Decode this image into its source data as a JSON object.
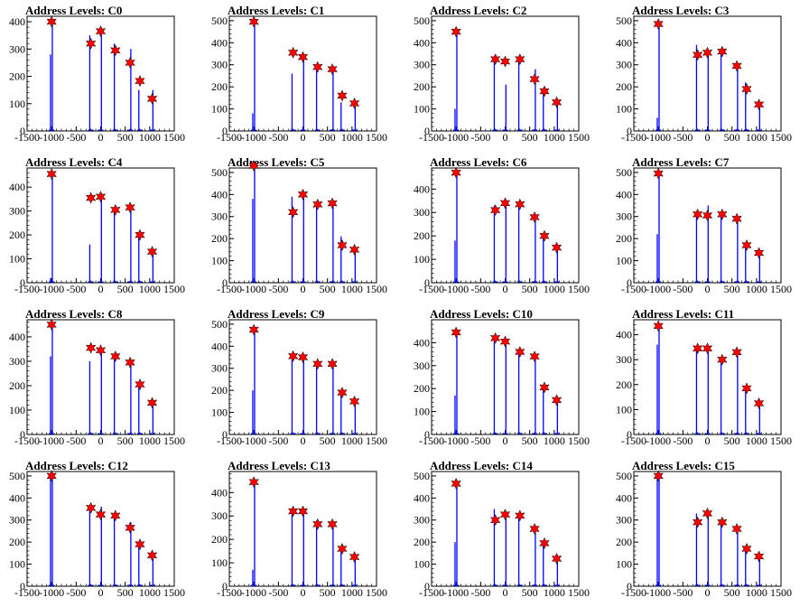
{
  "colors": {
    "bar": "#0000ff",
    "marker": "#ff0000",
    "axis": "#000000"
  },
  "marker_shape": "star",
  "chart_data": [
    {
      "type": "bar",
      "title": "Address Levels: C0",
      "xlim": [
        -1500,
        1500
      ],
      "ylim": [
        0,
        420
      ],
      "yticks": [
        0,
        100,
        200,
        300,
        400
      ],
      "x_ticks": [
        "-1500",
        "-1000",
        "-500",
        "0",
        "500",
        "1000",
        "1500"
      ],
      "bars": [
        [
          -1000,
          280
        ],
        [
          -1000,
          410
        ],
        [
          -200,
          350
        ],
        [
          0,
          350
        ],
        [
          300,
          320
        ],
        [
          600,
          300
        ],
        [
          800,
          150
        ],
        [
          1050,
          150
        ]
      ],
      "markers": [
        [
          -1000,
          400
        ],
        [
          -200,
          320
        ],
        [
          0,
          365
        ],
        [
          300,
          295
        ],
        [
          600,
          250
        ],
        [
          800,
          183
        ],
        [
          1050,
          118
        ]
      ]
    },
    {
      "type": "bar",
      "title": "Address Levels: C1",
      "xlim": [
        -1500,
        1500
      ],
      "ylim": [
        0,
        520
      ],
      "yticks": [
        0,
        100,
        200,
        300,
        400,
        500
      ],
      "x_ticks": [
        "-1500",
        "-1000",
        "-500",
        "0",
        "500",
        "1000",
        "1500"
      ],
      "bars": [
        [
          -1000,
          80
        ],
        [
          -1000,
          500
        ],
        [
          -200,
          260
        ],
        [
          0,
          330
        ],
        [
          300,
          290
        ],
        [
          600,
          290
        ],
        [
          800,
          130
        ],
        [
          1050,
          130
        ]
      ],
      "markers": [
        [
          -1000,
          495
        ],
        [
          -200,
          355
        ],
        [
          0,
          335
        ],
        [
          300,
          290
        ],
        [
          600,
          280
        ],
        [
          800,
          160
        ],
        [
          1050,
          125
        ]
      ]
    },
    {
      "type": "bar",
      "title": "Address Levels: C2",
      "xlim": [
        -1500,
        1500
      ],
      "ylim": [
        0,
        520
      ],
      "yticks": [
        0,
        100,
        200,
        300,
        400,
        500
      ],
      "x_ticks": [
        "-1500",
        "-1000",
        "-500",
        "0",
        "500",
        "1000",
        "1500"
      ],
      "bars": [
        [
          -1000,
          100
        ],
        [
          -1000,
          460
        ],
        [
          -200,
          320
        ],
        [
          0,
          210
        ],
        [
          300,
          330
        ],
        [
          600,
          280
        ],
        [
          800,
          180
        ],
        [
          1050,
          130
        ]
      ],
      "markers": [
        [
          -1000,
          450
        ],
        [
          -200,
          325
        ],
        [
          0,
          315
        ],
        [
          300,
          325
        ],
        [
          600,
          235
        ],
        [
          800,
          180
        ],
        [
          1050,
          130
        ]
      ]
    },
    {
      "type": "bar",
      "title": "Address Levels: C3",
      "xlim": [
        -1500,
        1500
      ],
      "ylim": [
        0,
        520
      ],
      "yticks": [
        0,
        100,
        200,
        300,
        400,
        500
      ],
      "x_ticks": [
        "-1500",
        "-1000",
        "-500",
        "0",
        "500",
        "1000",
        "1500"
      ],
      "bars": [
        [
          -1000,
          60
        ],
        [
          -1000,
          490
        ],
        [
          -200,
          390
        ],
        [
          0,
          350
        ],
        [
          300,
          360
        ],
        [
          600,
          300
        ],
        [
          800,
          220
        ],
        [
          1050,
          130
        ]
      ],
      "markers": [
        [
          -1000,
          485
        ],
        [
          -200,
          345
        ],
        [
          0,
          355
        ],
        [
          300,
          360
        ],
        [
          600,
          295
        ],
        [
          800,
          190
        ],
        [
          1050,
          120
        ]
      ]
    },
    {
      "type": "bar",
      "title": "Address Levels: C4",
      "xlim": [
        -1500,
        1500
      ],
      "ylim": [
        0,
        480
      ],
      "yticks": [
        0,
        100,
        200,
        300,
        400
      ],
      "x_ticks": [
        "-1500",
        "-1000",
        "-500",
        "0",
        "500",
        "1000",
        "1500"
      ],
      "bars": [
        [
          -1000,
          20
        ],
        [
          -1000,
          460
        ],
        [
          -200,
          160
        ],
        [
          0,
          370
        ],
        [
          300,
          310
        ],
        [
          600,
          320
        ],
        [
          800,
          200
        ],
        [
          1050,
          130
        ]
      ],
      "markers": [
        [
          -1000,
          455
        ],
        [
          -200,
          355
        ],
        [
          0,
          360
        ],
        [
          300,
          305
        ],
        [
          600,
          315
        ],
        [
          800,
          200
        ],
        [
          1050,
          130
        ]
      ]
    },
    {
      "type": "bar",
      "title": "Address Levels: C5",
      "xlim": [
        -1500,
        1500
      ],
      "ylim": [
        0,
        520
      ],
      "yticks": [
        0,
        100,
        200,
        300,
        400,
        500
      ],
      "x_ticks": [
        "-1500",
        "-1000",
        "-500",
        "0",
        "500",
        "1000",
        "1500"
      ],
      "bars": [
        [
          -1000,
          380
        ],
        [
          -1000,
          530
        ],
        [
          -200,
          390
        ],
        [
          0,
          400
        ],
        [
          300,
          360
        ],
        [
          600,
          360
        ],
        [
          800,
          210
        ],
        [
          1050,
          160
        ]
      ],
      "markers": [
        [
          -1000,
          530
        ],
        [
          -200,
          320
        ],
        [
          0,
          400
        ],
        [
          300,
          355
        ],
        [
          600,
          360
        ],
        [
          800,
          170
        ],
        [
          1050,
          150
        ]
      ]
    },
    {
      "type": "bar",
      "title": "Address Levels: C6",
      "xlim": [
        -1500,
        1500
      ],
      "ylim": [
        0,
        490
      ],
      "yticks": [
        0,
        100,
        200,
        300,
        400
      ],
      "x_ticks": [
        "-1500",
        "-1000",
        "-500",
        "0",
        "500",
        "1000",
        "1500"
      ],
      "bars": [
        [
          -1000,
          180
        ],
        [
          -1000,
          470
        ],
        [
          -200,
          330
        ],
        [
          0,
          340
        ],
        [
          300,
          340
        ],
        [
          600,
          290
        ],
        [
          800,
          200
        ],
        [
          1050,
          150
        ]
      ],
      "markers": [
        [
          -1000,
          470
        ],
        [
          -200,
          310
        ],
        [
          0,
          340
        ],
        [
          300,
          335
        ],
        [
          600,
          280
        ],
        [
          800,
          200
        ],
        [
          1050,
          150
        ]
      ]
    },
    {
      "type": "bar",
      "title": "Address Levels: C7",
      "xlim": [
        -1500,
        1500
      ],
      "ylim": [
        0,
        520
      ],
      "yticks": [
        0,
        100,
        200,
        300,
        400,
        500
      ],
      "x_ticks": [
        "-1500",
        "-1000",
        "-500",
        "0",
        "500",
        "1000",
        "1500"
      ],
      "bars": [
        [
          -1000,
          220
        ],
        [
          -1000,
          500
        ],
        [
          -200,
          320
        ],
        [
          0,
          350
        ],
        [
          300,
          320
        ],
        [
          600,
          300
        ],
        [
          800,
          170
        ],
        [
          1050,
          140
        ]
      ],
      "markers": [
        [
          -1000,
          495
        ],
        [
          -200,
          310
        ],
        [
          0,
          305
        ],
        [
          300,
          310
        ],
        [
          600,
          290
        ],
        [
          800,
          170
        ],
        [
          1050,
          135
        ]
      ]
    },
    {
      "type": "bar",
      "title": "Address Levels: C8",
      "xlim": [
        -1500,
        1500
      ],
      "ylim": [
        0,
        470
      ],
      "yticks": [
        0,
        100,
        200,
        300,
        400
      ],
      "x_ticks": [
        "-1500",
        "-1000",
        "-500",
        "0",
        "500",
        "1000",
        "1500"
      ],
      "bars": [
        [
          -1000,
          320
        ],
        [
          -1000,
          450
        ],
        [
          -200,
          300
        ],
        [
          0,
          350
        ],
        [
          300,
          320
        ],
        [
          600,
          300
        ],
        [
          800,
          200
        ],
        [
          1050,
          130
        ]
      ],
      "markers": [
        [
          -1000,
          450
        ],
        [
          -200,
          355
        ],
        [
          0,
          345
        ],
        [
          300,
          320
        ],
        [
          600,
          295
        ],
        [
          800,
          205
        ],
        [
          1050,
          130
        ]
      ]
    },
    {
      "type": "bar",
      "title": "Address Levels: C9",
      "xlim": [
        -1500,
        1500
      ],
      "ylim": [
        0,
        520
      ],
      "yticks": [
        0,
        100,
        200,
        300,
        400,
        500
      ],
      "x_ticks": [
        "-1500",
        "-1000",
        "-500",
        "0",
        "500",
        "1000",
        "1500"
      ],
      "bars": [
        [
          -1000,
          200
        ],
        [
          -1000,
          480
        ],
        [
          -200,
          360
        ],
        [
          0,
          360
        ],
        [
          300,
          330
        ],
        [
          600,
          320
        ],
        [
          800,
          190
        ],
        [
          1050,
          150
        ]
      ],
      "markers": [
        [
          -1000,
          475
        ],
        [
          -200,
          355
        ],
        [
          0,
          350
        ],
        [
          300,
          320
        ],
        [
          600,
          320
        ],
        [
          800,
          190
        ],
        [
          1050,
          150
        ]
      ]
    },
    {
      "type": "bar",
      "title": "Address Levels: C10",
      "xlim": [
        -1500,
        1500
      ],
      "ylim": [
        0,
        500
      ],
      "yticks": [
        0,
        100,
        200,
        300,
        400
      ],
      "x_ticks": [
        "-1500",
        "-1000",
        "-500",
        "0",
        "500",
        "1000",
        "1500"
      ],
      "bars": [
        [
          -1000,
          170
        ],
        [
          -1000,
          450
        ],
        [
          -200,
          420
        ],
        [
          0,
          400
        ],
        [
          300,
          360
        ],
        [
          600,
          340
        ],
        [
          800,
          210
        ],
        [
          1050,
          150
        ]
      ],
      "markers": [
        [
          -1000,
          445
        ],
        [
          -200,
          420
        ],
        [
          0,
          405
        ],
        [
          300,
          360
        ],
        [
          600,
          340
        ],
        [
          800,
          205
        ],
        [
          1050,
          150
        ]
      ]
    },
    {
      "type": "bar",
      "title": "Address Levels: C11",
      "xlim": [
        -1500,
        1500
      ],
      "ylim": [
        0,
        460
      ],
      "yticks": [
        0,
        100,
        200,
        300,
        400
      ],
      "x_ticks": [
        "-1500",
        "-1000",
        "-500",
        "0",
        "500",
        "1000",
        "1500"
      ],
      "bars": [
        [
          -1000,
          360
        ],
        [
          -1000,
          440
        ],
        [
          -200,
          350
        ],
        [
          0,
          350
        ],
        [
          300,
          300
        ],
        [
          600,
          330
        ],
        [
          800,
          190
        ],
        [
          1050,
          130
        ]
      ],
      "markers": [
        [
          -1000,
          435
        ],
        [
          -200,
          345
        ],
        [
          0,
          345
        ],
        [
          300,
          300
        ],
        [
          600,
          330
        ],
        [
          800,
          185
        ],
        [
          1050,
          125
        ]
      ]
    },
    {
      "type": "bar",
      "title": "Address Levels: C12",
      "xlim": [
        -1500,
        1500
      ],
      "ylim": [
        0,
        520
      ],
      "yticks": [
        0,
        100,
        200,
        300,
        400,
        500
      ],
      "x_ticks": [
        "-1500",
        "-1000",
        "-500",
        "0",
        "500",
        "1000",
        "1500"
      ],
      "bars": [
        [
          -1000,
          490
        ],
        [
          -1000,
          500
        ],
        [
          -200,
          350
        ],
        [
          0,
          360
        ],
        [
          300,
          330
        ],
        [
          600,
          290
        ],
        [
          800,
          190
        ],
        [
          1050,
          140
        ]
      ],
      "markers": [
        [
          -1000,
          500
        ],
        [
          -200,
          355
        ],
        [
          0,
          325
        ],
        [
          300,
          320
        ],
        [
          600,
          265
        ],
        [
          800,
          190
        ],
        [
          1050,
          140
        ]
      ]
    },
    {
      "type": "bar",
      "title": "Address Levels: C13",
      "xlim": [
        -1500,
        1500
      ],
      "ylim": [
        0,
        490
      ],
      "yticks": [
        0,
        100,
        200,
        300,
        400
      ],
      "x_ticks": [
        "-1500",
        "-1000",
        "-500",
        "0",
        "500",
        "1000",
        "1500"
      ],
      "bars": [
        [
          -1000,
          70
        ],
        [
          -1000,
          450
        ],
        [
          -200,
          320
        ],
        [
          0,
          330
        ],
        [
          300,
          280
        ],
        [
          600,
          270
        ],
        [
          800,
          170
        ],
        [
          1050,
          130
        ]
      ],
      "markers": [
        [
          -1000,
          445
        ],
        [
          -200,
          320
        ],
        [
          0,
          320
        ],
        [
          300,
          265
        ],
        [
          600,
          265
        ],
        [
          800,
          160
        ],
        [
          1050,
          125
        ]
      ]
    },
    {
      "type": "bar",
      "title": "Address Levels: C14",
      "xlim": [
        -1500,
        1500
      ],
      "ylim": [
        0,
        520
      ],
      "yticks": [
        0,
        100,
        200,
        300,
        400,
        500
      ],
      "x_ticks": [
        "-1500",
        "-1000",
        "-500",
        "0",
        "500",
        "1000",
        "1500"
      ],
      "bars": [
        [
          -1000,
          200
        ],
        [
          -1000,
          470
        ],
        [
          -200,
          350
        ],
        [
          0,
          330
        ],
        [
          300,
          320
        ],
        [
          600,
          260
        ],
        [
          800,
          200
        ],
        [
          1050,
          130
        ]
      ],
      "markers": [
        [
          -1000,
          465
        ],
        [
          -200,
          300
        ],
        [
          0,
          325
        ],
        [
          300,
          320
        ],
        [
          600,
          260
        ],
        [
          800,
          195
        ],
        [
          1050,
          125
        ]
      ]
    },
    {
      "type": "bar",
      "title": "Address Levels: C15",
      "xlim": [
        -1500,
        1500
      ],
      "ylim": [
        0,
        520
      ],
      "yticks": [
        0,
        100,
        200,
        300,
        400,
        500
      ],
      "x_ticks": [
        "-1500",
        "-1000",
        "-500",
        "0",
        "500",
        "1000",
        "1500"
      ],
      "bars": [
        [
          -1000,
          500
        ],
        [
          -1000,
          500
        ],
        [
          -200,
          330
        ],
        [
          0,
          330
        ],
        [
          300,
          300
        ],
        [
          600,
          270
        ],
        [
          800,
          180
        ],
        [
          1050,
          140
        ]
      ],
      "markers": [
        [
          -1000,
          500
        ],
        [
          -200,
          290
        ],
        [
          0,
          330
        ],
        [
          300,
          290
        ],
        [
          600,
          260
        ],
        [
          800,
          170
        ],
        [
          1050,
          135
        ]
      ]
    }
  ]
}
